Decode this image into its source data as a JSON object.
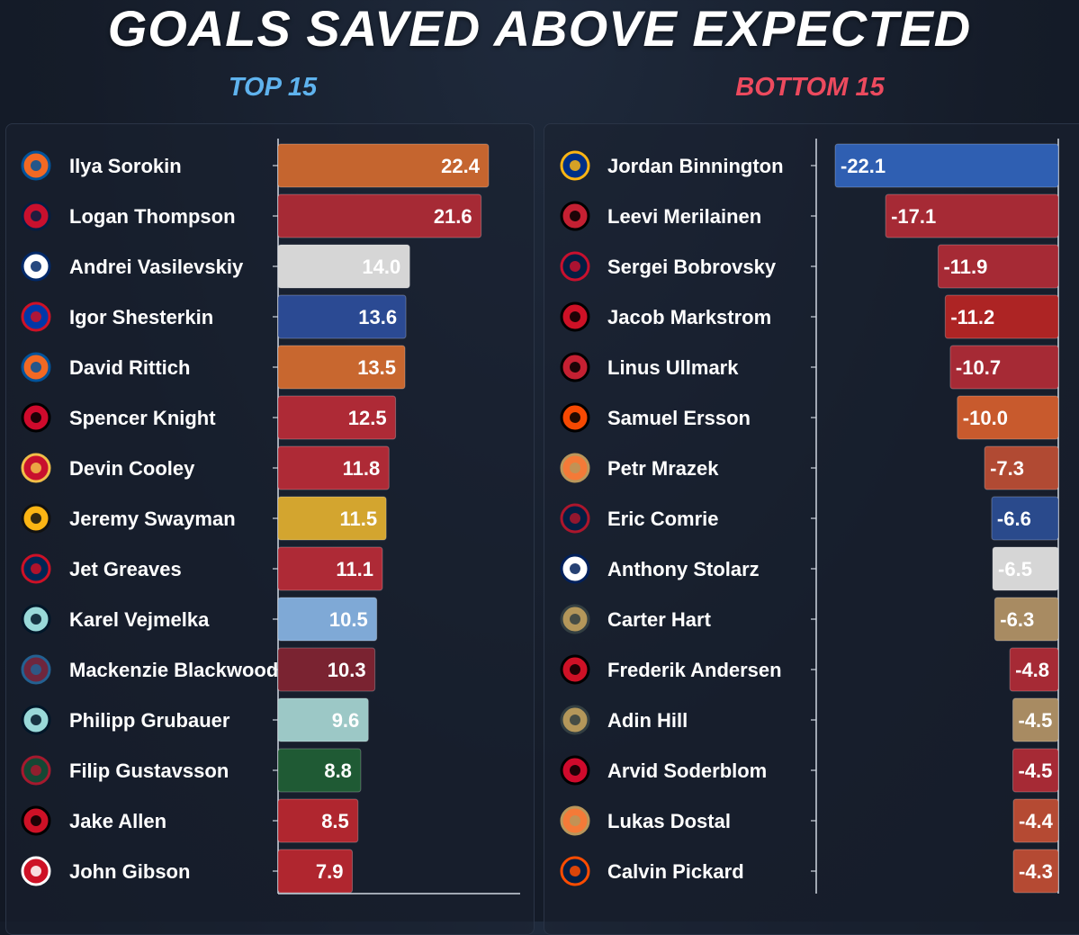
{
  "title": "GOALS SAVED ABOVE EXPECTED",
  "chart_data": [
    {
      "type": "bar",
      "orientation": "horizontal",
      "title": "TOP 15",
      "categories": [
        "Ilya Sorokin",
        "Logan Thompson",
        "Andrei Vasilevskiy",
        "Igor Shesterkin",
        "David Rittich",
        "Spencer Knight",
        "Devin Cooley",
        "Jeremy Swayman",
        "Jet Greaves",
        "Karel Vejmelka",
        "Mackenzie Blackwood",
        "Philipp Grubauer",
        "Filip Gustavsson",
        "Jake Allen",
        "John Gibson"
      ],
      "values": [
        22.4,
        21.6,
        14.0,
        13.6,
        13.5,
        12.5,
        11.8,
        11.5,
        11.1,
        10.5,
        10.3,
        9.6,
        8.8,
        8.5,
        7.9
      ],
      "labels": [
        "22.4",
        "21.6",
        "14.0",
        "13.6",
        "13.5",
        "12.5",
        "11.8",
        "11.5",
        "11.1",
        "10.5",
        "10.3",
        "9.6",
        "8.8",
        "8.5",
        "7.9"
      ],
      "colors": [
        "#c5652f",
        "#a62a35",
        "#d6d6d6",
        "#2b4a93",
        "#c8672f",
        "#ae2a36",
        "#ae2a36",
        "#d3a52f",
        "#ae2a36",
        "#7fa9d6",
        "#7a2331",
        "#9cc8c6",
        "#1f5a34",
        "#b0262f",
        "#b0262f"
      ],
      "teams": [
        "islanders",
        "capitals",
        "lightning",
        "rangers",
        "islanders",
        "blackhawks",
        "flames",
        "bruins",
        "blue-jackets",
        "kraken",
        "avalanche",
        "kraken",
        "wild",
        "devils",
        "red-wings"
      ],
      "xlim": [
        0,
        22.4
      ]
    },
    {
      "type": "bar",
      "orientation": "horizontal",
      "title": "BOTTOM 15",
      "categories": [
        "Jordan Binnington",
        "Leevi Merilainen",
        "Sergei Bobrovsky",
        "Jacob Markstrom",
        "Linus Ullmark",
        "Samuel Ersson",
        "Petr Mrazek",
        "Eric Comrie",
        "Anthony Stolarz",
        "Carter Hart",
        "Frederik Andersen",
        "Adin Hill",
        "Arvid Soderblom",
        "Lukas Dostal",
        "Calvin Pickard"
      ],
      "values": [
        -22.1,
        -17.1,
        -11.9,
        -11.2,
        -10.7,
        -10.0,
        -7.3,
        -6.6,
        -6.5,
        -6.3,
        -4.8,
        -4.5,
        -4.5,
        -4.4,
        -4.3
      ],
      "labels": [
        "-22.1",
        "-17.1",
        "-11.9",
        "-11.2",
        "-10.7",
        "-10.0",
        "-7.3",
        "-6.6",
        "-6.5",
        "-6.3",
        "-4.8",
        "-4.5",
        "-4.5",
        "-4.4",
        "-4.3"
      ],
      "colors": [
        "#2f5fb2",
        "#a62a35",
        "#a62a35",
        "#ad2424",
        "#a62a35",
        "#c85a2d",
        "#b14a33",
        "#2a4a8c",
        "#d6d6d6",
        "#a88b62",
        "#a62a35",
        "#a88b62",
        "#a62a35",
        "#b54a33",
        "#b54a33"
      ],
      "teams": [
        "blues",
        "senators",
        "panthers",
        "devils",
        "senators",
        "flyers",
        "ducks",
        "jets",
        "maple-leafs",
        "golden-knights",
        "hurricanes",
        "golden-knights",
        "blackhawks",
        "ducks",
        "oilers"
      ],
      "xlim": [
        -22.1,
        0
      ]
    }
  ]
}
